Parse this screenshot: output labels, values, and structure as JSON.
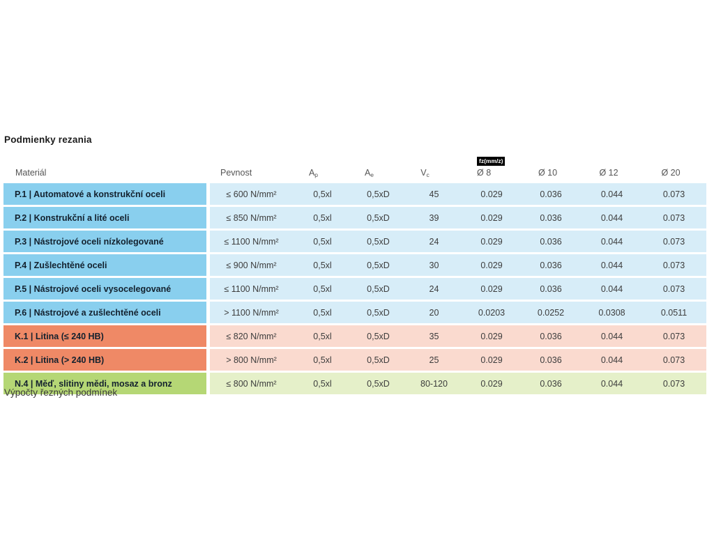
{
  "page": {
    "title": "Podmienky rezania",
    "caption": "Výpočty řezných podmínek"
  },
  "table": {
    "headers": {
      "material": "Materiál",
      "pevnost": "Pevnost",
      "ap": {
        "base": "A",
        "sub": "p"
      },
      "ae": {
        "base": "A",
        "sub": "e"
      },
      "vc": {
        "base": "V",
        "sub": "c"
      },
      "fz_badge": "fz(mm/z)",
      "d8": "Ø 8",
      "d10": "Ø 10",
      "d12": "Ø 12",
      "d20": "Ø 20"
    },
    "rows": [
      {
        "group": "steel",
        "material": "P.1 | Automatové a konstrukční oceli",
        "pevnost": "≤ 600 N/mm²",
        "ap": "0,5xl",
        "ae": "0,5xD",
        "vc": "45",
        "d8": "0.029",
        "d10": "0.036",
        "d12": "0.044",
        "d20": "0.073"
      },
      {
        "group": "steel",
        "material": "P.2 | Konstrukční a lité oceli",
        "pevnost": "≤ 850 N/mm²",
        "ap": "0,5xl",
        "ae": "0,5xD",
        "vc": "39",
        "d8": "0.029",
        "d10": "0.036",
        "d12": "0.044",
        "d20": "0.073"
      },
      {
        "group": "steel",
        "material": "P.3 | Nástrojové oceli nízkolegované",
        "pevnost": "≤ 1100 N/mm²",
        "ap": "0,5xl",
        "ae": "0,5xD",
        "vc": "24",
        "d8": "0.029",
        "d10": "0.036",
        "d12": "0.044",
        "d20": "0.073"
      },
      {
        "group": "steel",
        "material": "P.4 | Zušlechtěné oceli",
        "pevnost": "≤ 900 N/mm²",
        "ap": "0,5xl",
        "ae": "0,5xD",
        "vc": "30",
        "d8": "0.029",
        "d10": "0.036",
        "d12": "0.044",
        "d20": "0.073"
      },
      {
        "group": "steel",
        "material": "P.5 | Nástrojové oceli vysocelegované",
        "pevnost": "≤ 1100 N/mm²",
        "ap": "0,5xl",
        "ae": "0,5xD",
        "vc": "24",
        "d8": "0.029",
        "d10": "0.036",
        "d12": "0.044",
        "d20": "0.073"
      },
      {
        "group": "steel",
        "material": "P.6 | Nástrojové a zušlechtěné oceli",
        "pevnost": "> 1100 N/mm²",
        "ap": "0,5xl",
        "ae": "0,5xD",
        "vc": "20",
        "d8": "0.0203",
        "d10": "0.0252",
        "d12": "0.0308",
        "d20": "0.0511"
      },
      {
        "group": "cast-iron",
        "material": "K.1 | Litina (≤ 240 HB)",
        "pevnost": "≤ 820 N/mm²",
        "ap": "0,5xl",
        "ae": "0,5xD",
        "vc": "35",
        "d8": "0.029",
        "d10": "0.036",
        "d12": "0.044",
        "d20": "0.073"
      },
      {
        "group": "cast-iron",
        "material": "K.2 | Litina (> 240 HB)",
        "pevnost": "> 800 N/mm²",
        "ap": "0,5xl",
        "ae": "0,5xD",
        "vc": "25",
        "d8": "0.029",
        "d10": "0.036",
        "d12": "0.044",
        "d20": "0.073"
      },
      {
        "group": "non-ferrous",
        "material": "N.4 | Měď, slitiny mědi, mosaz a bronz",
        "pevnost": "≤ 800 N/mm²",
        "ap": "0,5xl",
        "ae": "0,5xD",
        "vc": "80-120",
        "d8": "0.029",
        "d10": "0.036",
        "d12": "0.044",
        "d20": "0.073"
      }
    ]
  },
  "colors": {
    "steel_dark": "#89cfee",
    "steel_light": "#d7edf8",
    "cast_dark": "#ef8966",
    "cast_light": "#fadacf",
    "nonferrous_dark": "#b5d775",
    "nonferrous_light": "#e5f0c9",
    "badge_bg": "#000000",
    "badge_text": "#ffffff"
  }
}
